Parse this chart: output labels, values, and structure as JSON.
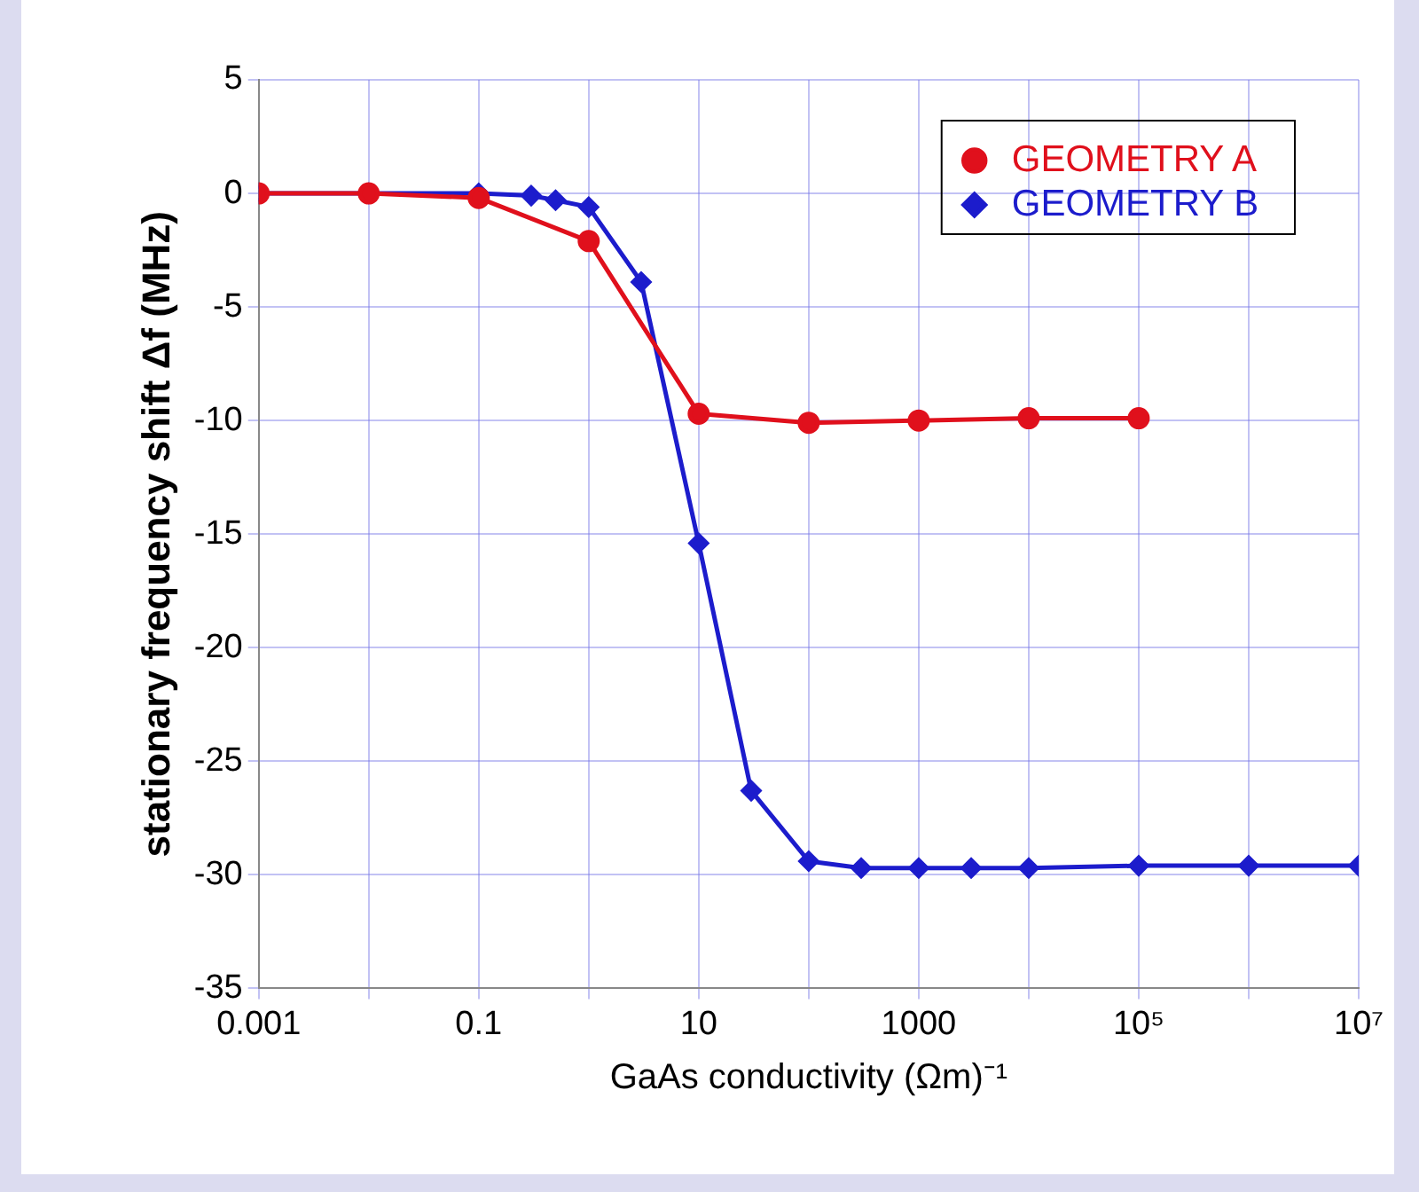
{
  "chart_data": {
    "type": "line",
    "xlabel": "GaAs conductivity (Ωm)⁻¹",
    "ylabel": "stationary frequency shift Δf (MHz)",
    "log": "x",
    "grid": true,
    "legend": "top right",
    "line_style": "solid",
    "xlim": [
      0.001,
      10000000
    ],
    "xticks": [
      0.001,
      {
        "value": 0.01,
        "label": null
      },
      0.1,
      {
        "value": 1,
        "label": null
      },
      10,
      {
        "value": 100,
        "label": null
      },
      1000,
      {
        "value": 10000,
        "label": null
      },
      {
        "value": 100000,
        "label": "10⁵"
      },
      {
        "value": 1000000,
        "label": null
      },
      {
        "value": 10000000,
        "label": "10⁷"
      }
    ],
    "ylim": [
      -35,
      5
    ],
    "yticks": [
      -35,
      -30,
      -25,
      -20,
      -15,
      -10,
      -5,
      0,
      5
    ],
    "series": [
      {
        "name": "GEOMETRY A",
        "color": "#e0101c",
        "marker": "circle",
        "x": [
          0.001,
          0.01,
          0.1,
          1,
          10,
          100,
          1000,
          10000,
          100000
        ],
        "values": [
          0,
          0,
          -0.2,
          -2.1,
          -9.7,
          -10.1,
          -10.0,
          -9.9,
          -9.9
        ]
      },
      {
        "name": "GEOMETRY B",
        "color": "#1c1ccc",
        "marker": "diamond",
        "x": [
          0.001,
          0.01,
          0.1,
          0.3,
          0.5,
          1,
          3,
          10,
          30,
          100,
          300,
          1000,
          3000,
          10000,
          100000,
          1000000,
          10000000
        ],
        "values": [
          0,
          0,
          0,
          -0.1,
          -0.3,
          -0.6,
          -3.9,
          -15.4,
          -26.3,
          -29.4,
          -29.7,
          -29.7,
          -29.7,
          -29.7,
          -29.6,
          -29.6,
          -29.6
        ]
      }
    ]
  }
}
